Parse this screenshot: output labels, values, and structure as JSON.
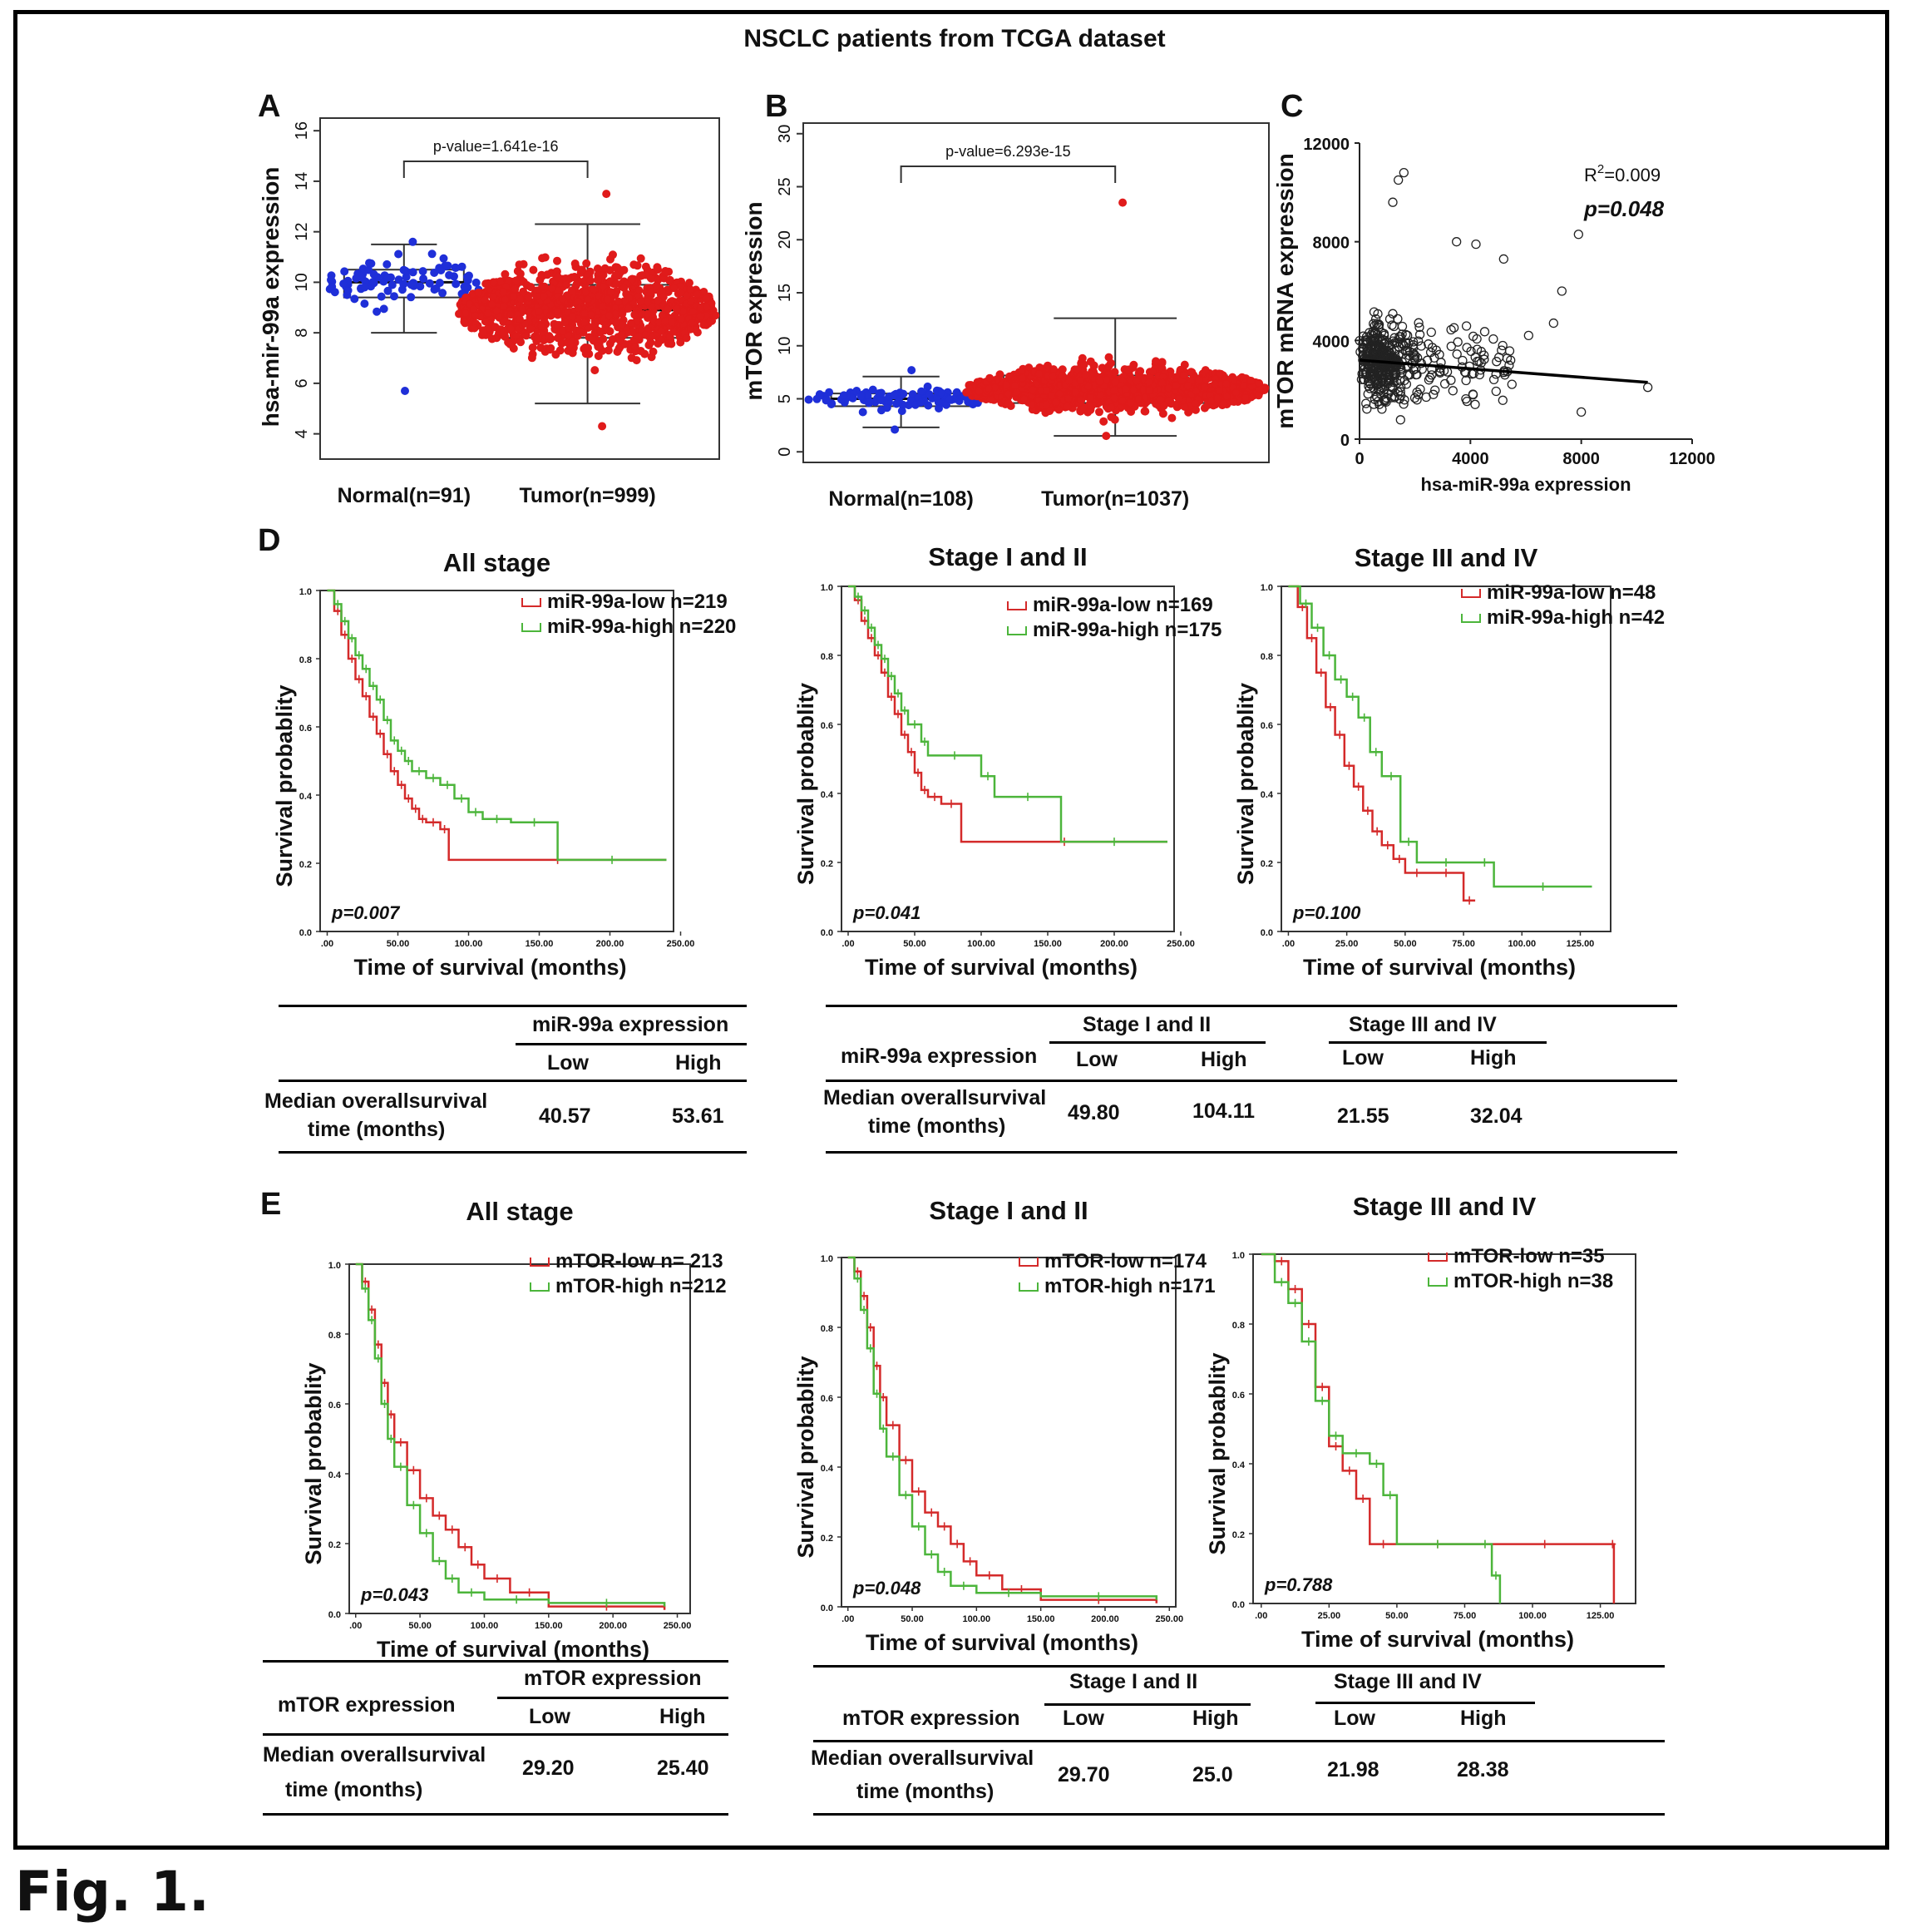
{
  "figure": {
    "title": "NSCLC patients from TCGA dataset",
    "caption": "Fig. 1.",
    "panel_labels": {
      "A": "A",
      "B": "B",
      "C": "C",
      "D": "D",
      "E": "E"
    }
  },
  "colors": {
    "normal": "#1f2fd8",
    "tumor": "#e01b1b",
    "low": "#d42a2a",
    "high": "#4cb53b"
  },
  "tables": {
    "d_all": {
      "group_header": "miR-99a expression",
      "low": "Low",
      "high": "High",
      "row_label_1": "Median overallsurvival",
      "row_label_2": "time (months)",
      "low_value": "40.57",
      "high_value": "53.61"
    },
    "d_stage": {
      "row_header": "miR-99a expression",
      "group1": "Stage I and II",
      "group2": "Stage III and IV",
      "low": "Low",
      "high": "High",
      "row_label_1": "Median overallsurvival",
      "row_label_2": "time (months)",
      "v1": "49.80",
      "v2": "104.11",
      "v3": "21.55",
      "v4": "32.04"
    },
    "e_all": {
      "group_header": "mTOR expression",
      "row_header": "mTOR expression",
      "low": "Low",
      "high": "High",
      "row_label_1": "Median overallsurvival",
      "row_label_2": "time (months)",
      "low_value": "29.20",
      "high_value": "25.40"
    },
    "e_stage": {
      "row_header": "mTOR expression",
      "group1": "Stage I and II",
      "group2": "Stage III and IV",
      "low": "Low",
      "high": "High",
      "row_label_1": "Median overallsurvival",
      "row_label_2": "time (months)",
      "v1": "29.70",
      "v2": "25.0",
      "v3": "21.98",
      "v4": "28.38"
    }
  },
  "chart_data": [
    {
      "id": "A",
      "type": "scatter",
      "subtype": "beeswarm-box",
      "ylabel": "hsa-mir-99a expression",
      "ylim": [
        3,
        16.5
      ],
      "yticks": [
        4,
        6,
        8,
        10,
        12,
        14,
        16
      ],
      "categories": [
        "Normal(n=91)",
        "Tumor(n=999)"
      ],
      "annotation": "p-value=1.641e-16",
      "series": [
        {
          "n": 91,
          "median": 10.0,
          "q1": 9.4,
          "q3": 10.5,
          "whisker_low": 8.0,
          "whisker_high": 11.5,
          "min": 5.7,
          "max": 11.6
        },
        {
          "n": 999,
          "median": 8.9,
          "q1": 7.8,
          "q3": 9.9,
          "whisker_low": 5.2,
          "whisker_high": 12.3,
          "min": 4.3,
          "max": 13.5
        }
      ]
    },
    {
      "id": "B",
      "type": "scatter",
      "subtype": "beeswarm-box",
      "ylabel": "mTOR  expression",
      "ylim": [
        -1,
        31
      ],
      "yticks": [
        0,
        5,
        10,
        15,
        20,
        25,
        30
      ],
      "categories": [
        "Normal(n=108)",
        "Tumor(n=1037)"
      ],
      "annotation": "p-value=6.293e-15",
      "series": [
        {
          "n": 108,
          "median": 5.0,
          "q1": 4.3,
          "q3": 5.5,
          "whisker_low": 2.3,
          "whisker_high": 7.1,
          "min": 2.1,
          "max": 7.7
        },
        {
          "n": 1037,
          "median": 5.9,
          "q1": 4.6,
          "q3": 7.2,
          "whisker_low": 1.5,
          "whisker_high": 12.6,
          "min": 1.5,
          "max": 23.5
        }
      ]
    },
    {
      "id": "C",
      "type": "scatter",
      "xlabel": "hsa-miR-99a expression",
      "ylabel": "mTOR  mRNA expression",
      "xlim": [
        0,
        12000
      ],
      "ylim": [
        0,
        12000
      ],
      "xticks": [
        0,
        4000,
        8000,
        12000
      ],
      "yticks": [
        0,
        4000,
        8000,
        12000
      ],
      "xtick_labels": [
        "0",
        "4000",
        "8000",
        "12000"
      ],
      "ytick_labels": [
        "0",
        "4000",
        "8000",
        "12000"
      ],
      "r2_label": "R",
      "r2_sup": "2",
      "r2_value": "=0.009",
      "p_label": "p=0.048",
      "fit_line": {
        "x": [
          0,
          10400
        ],
        "y": [
          3200,
          2300
        ]
      },
      "n_points": 440,
      "outlier_points": [
        {
          "x": 1400,
          "y": 10500
        },
        {
          "x": 1600,
          "y": 10800
        },
        {
          "x": 1200,
          "y": 9600
        },
        {
          "x": 7900,
          "y": 8300
        },
        {
          "x": 7300,
          "y": 6000
        },
        {
          "x": 7000,
          "y": 4700
        },
        {
          "x": 10400,
          "y": 2100
        },
        {
          "x": 8000,
          "y": 1100
        },
        {
          "x": 6100,
          "y": 4200
        },
        {
          "x": 5200,
          "y": 7300
        },
        {
          "x": 3500,
          "y": 8000
        },
        {
          "x": 4200,
          "y": 7900
        }
      ]
    },
    {
      "id": "D1",
      "type": "line",
      "subtype": "kaplan-meier",
      "title": "All stage",
      "xlabel": "Time of survival (months)",
      "ylabel": "Survival  probablity",
      "xlim": [
        -5,
        245
      ],
      "ylim": [
        0,
        1
      ],
      "xticks": [
        0,
        50,
        100,
        150,
        200,
        250
      ],
      "xtick_labels": [
        ".00",
        "50.00",
        "100.00",
        "150.00",
        "200.00",
        "250.00"
      ],
      "yticks": [
        0,
        0.2,
        0.4,
        0.6,
        0.8,
        1.0
      ],
      "ytick_labels": [
        "0.0",
        "0.2",
        "0.4",
        "0.6",
        "0.8",
        "1.0"
      ],
      "p_label": "p=0.007",
      "series": [
        {
          "name": "miR-99a-low n=219",
          "color": "#d42a2a",
          "x": [
            0,
            5,
            10,
            15,
            20,
            25,
            30,
            35,
            40,
            45,
            50,
            55,
            60,
            65,
            70,
            80,
            86,
            240
          ],
          "y": [
            1.0,
            0.94,
            0.87,
            0.8,
            0.74,
            0.69,
            0.63,
            0.58,
            0.52,
            0.47,
            0.43,
            0.39,
            0.36,
            0.33,
            0.32,
            0.3,
            0.21,
            0.21
          ]
        },
        {
          "name": "miR-99a-high n=220",
          "color": "#4cb53b",
          "x": [
            0,
            5,
            10,
            15,
            20,
            25,
            30,
            35,
            40,
            45,
            50,
            55,
            60,
            70,
            80,
            90,
            100,
            110,
            130,
            163,
            240
          ],
          "y": [
            1.0,
            0.96,
            0.91,
            0.86,
            0.81,
            0.77,
            0.72,
            0.68,
            0.62,
            0.56,
            0.53,
            0.5,
            0.47,
            0.45,
            0.43,
            0.39,
            0.35,
            0.33,
            0.32,
            0.21,
            0.21
          ]
        }
      ]
    },
    {
      "id": "D2",
      "type": "line",
      "subtype": "kaplan-meier",
      "title": "Stage I and II",
      "xlabel": "Time of survival (months)",
      "ylabel": "Survival  probablity",
      "xlim": [
        -5,
        245
      ],
      "ylim": [
        0,
        1
      ],
      "xticks": [
        0,
        50,
        100,
        150,
        200,
        250
      ],
      "xtick_labels": [
        ".00",
        "50.00",
        "100.00",
        "150.00",
        "200.00",
        "250.00"
      ],
      "yticks": [
        0,
        0.2,
        0.4,
        0.6,
        0.8,
        1.0
      ],
      "ytick_labels": [
        "0.0",
        "0.2",
        "0.4",
        "0.6",
        "0.8",
        "1.0"
      ],
      "p_label": "p=0.041",
      "series": [
        {
          "name": "miR-99a-low n=169",
          "color": "#d42a2a",
          "x": [
            0,
            5,
            10,
            15,
            20,
            25,
            30,
            35,
            40,
            45,
            50,
            55,
            60,
            70,
            85,
            240
          ],
          "y": [
            1.0,
            0.96,
            0.9,
            0.85,
            0.8,
            0.75,
            0.68,
            0.63,
            0.57,
            0.52,
            0.46,
            0.41,
            0.39,
            0.37,
            0.26,
            0.26
          ]
        },
        {
          "name": "miR-99a-high n=175",
          "color": "#4cb53b",
          "x": [
            0,
            5,
            10,
            15,
            20,
            25,
            30,
            35,
            40,
            45,
            55,
            60,
            100,
            110,
            160,
            240
          ],
          "y": [
            1.0,
            0.97,
            0.93,
            0.88,
            0.83,
            0.79,
            0.74,
            0.69,
            0.64,
            0.6,
            0.55,
            0.51,
            0.45,
            0.39,
            0.26,
            0.26
          ]
        }
      ]
    },
    {
      "id": "D3",
      "type": "line",
      "subtype": "kaplan-meier",
      "title": "Stage III and IV",
      "xlabel": "Time of survival (months)",
      "ylabel": "Survival  probablity",
      "xlim": [
        -3,
        138
      ],
      "ylim": [
        0,
        1
      ],
      "xticks": [
        0,
        25,
        50,
        75,
        100,
        125
      ],
      "xtick_labels": [
        ".00",
        "25.00",
        "50.00",
        "75.00",
        "100.00",
        "125.00"
      ],
      "yticks": [
        0,
        0.2,
        0.4,
        0.6,
        0.8,
        1.0
      ],
      "ytick_labels": [
        "0.0",
        "0.2",
        "0.4",
        "0.6",
        "0.8",
        "1.0"
      ],
      "p_label": "p=0.100",
      "series": [
        {
          "name": "miR-99a-low n=48",
          "color": "#d42a2a",
          "x": [
            0,
            4,
            8,
            12,
            16,
            20,
            24,
            28,
            32,
            36,
            40,
            45,
            50,
            60,
            75,
            80
          ],
          "y": [
            1.0,
            0.94,
            0.85,
            0.75,
            0.65,
            0.57,
            0.48,
            0.42,
            0.35,
            0.29,
            0.25,
            0.21,
            0.17,
            0.17,
            0.09,
            0.09
          ]
        },
        {
          "name": "miR-99a-high n=42",
          "color": "#4cb53b",
          "x": [
            0,
            5,
            10,
            15,
            20,
            25,
            30,
            35,
            40,
            48,
            55,
            80,
            88,
            130
          ],
          "y": [
            1.0,
            0.95,
            0.88,
            0.8,
            0.73,
            0.68,
            0.62,
            0.52,
            0.45,
            0.26,
            0.2,
            0.2,
            0.13,
            0.13
          ]
        }
      ]
    },
    {
      "id": "E1",
      "type": "line",
      "subtype": "kaplan-meier",
      "title": "All stage",
      "xlabel": "Time of survival (months)",
      "ylabel": "Survival  probablity",
      "xlim": [
        -5,
        260
      ],
      "ylim": [
        0,
        1
      ],
      "xticks": [
        0,
        50,
        100,
        150,
        200,
        250
      ],
      "xtick_labels": [
        ".00",
        "50.00",
        "100.00",
        "150.00",
        "200.00",
        "250.00"
      ],
      "yticks": [
        0,
        0.2,
        0.4,
        0.6,
        0.8,
        1.0
      ],
      "ytick_labels": [
        "0.0",
        "0.2",
        "0.4",
        "0.6",
        "0.8",
        "1.0"
      ],
      "p_label": "p=0.043",
      "series": [
        {
          "name": "mTOR-low n= 213",
          "color": "#d42a2a",
          "x": [
            0,
            5,
            10,
            15,
            20,
            25,
            30,
            40,
            50,
            60,
            70,
            80,
            90,
            100,
            120,
            150,
            240
          ],
          "y": [
            1.0,
            0.95,
            0.87,
            0.77,
            0.66,
            0.57,
            0.49,
            0.41,
            0.33,
            0.28,
            0.24,
            0.19,
            0.14,
            0.1,
            0.06,
            0.02,
            0.01
          ]
        },
        {
          "name": "mTOR-high n=212",
          "color": "#4cb53b",
          "x": [
            0,
            5,
            10,
            15,
            20,
            25,
            30,
            40,
            50,
            60,
            70,
            80,
            100,
            150,
            240
          ],
          "y": [
            1.0,
            0.93,
            0.84,
            0.73,
            0.6,
            0.5,
            0.42,
            0.31,
            0.23,
            0.15,
            0.1,
            0.06,
            0.04,
            0.03,
            0.02
          ]
        }
      ]
    },
    {
      "id": "E2",
      "type": "line",
      "subtype": "kaplan-meier",
      "title": "Stage I and II",
      "xlabel": "Time of survival (months)",
      "ylabel": "Survival  probablity",
      "xlim": [
        -5,
        255
      ],
      "ylim": [
        0,
        1
      ],
      "xticks": [
        0,
        50,
        100,
        150,
        200,
        250
      ],
      "xtick_labels": [
        ".00",
        "50.00",
        "100.00",
        "150.00",
        "200.00",
        "250.00"
      ],
      "yticks": [
        0,
        0.2,
        0.4,
        0.6,
        0.8,
        1.0
      ],
      "ytick_labels": [
        "0.0",
        "0.2",
        "0.4",
        "0.6",
        "0.8",
        "1.0"
      ],
      "p_label": "p=0.048",
      "series": [
        {
          "name": "mTOR-low n=174",
          "color": "#d42a2a",
          "x": [
            0,
            5,
            10,
            15,
            20,
            25,
            30,
            40,
            50,
            60,
            70,
            80,
            90,
            100,
            120,
            150,
            240
          ],
          "y": [
            1.0,
            0.96,
            0.89,
            0.8,
            0.69,
            0.6,
            0.52,
            0.42,
            0.33,
            0.27,
            0.23,
            0.18,
            0.13,
            0.09,
            0.05,
            0.02,
            0.01
          ]
        },
        {
          "name": "mTOR-high n=171",
          "color": "#4cb53b",
          "x": [
            0,
            5,
            10,
            15,
            20,
            25,
            30,
            40,
            50,
            60,
            70,
            80,
            100,
            150,
            240
          ],
          "y": [
            1.0,
            0.94,
            0.85,
            0.74,
            0.61,
            0.51,
            0.43,
            0.32,
            0.23,
            0.15,
            0.1,
            0.06,
            0.04,
            0.03,
            0.02
          ]
        }
      ]
    },
    {
      "id": "E3",
      "type": "line",
      "subtype": "kaplan-meier",
      "title": "Stage III and IV",
      "xlabel": "Time of survival (months)",
      "ylabel": "Survival  probablity",
      "xlim": [
        -3,
        138
      ],
      "ylim": [
        0,
        1
      ],
      "xticks": [
        0,
        25,
        50,
        75,
        100,
        125
      ],
      "xtick_labels": [
        ".00",
        "25.00",
        "50.00",
        "75.00",
        "100.00",
        "125.00"
      ],
      "yticks": [
        0,
        0.2,
        0.4,
        0.6,
        0.8,
        1.0
      ],
      "ytick_labels": [
        "0.0",
        "0.2",
        "0.4",
        "0.6",
        "0.8",
        "1.0"
      ],
      "p_label": "p=0.788",
      "series": [
        {
          "name": "mTOR-low n=35",
          "color": "#d42a2a",
          "x": [
            0,
            5,
            10,
            15,
            20,
            25,
            30,
            35,
            40,
            50,
            80,
            129,
            130
          ],
          "y": [
            1.0,
            0.98,
            0.9,
            0.8,
            0.62,
            0.45,
            0.38,
            0.3,
            0.17,
            0.17,
            0.17,
            0.17,
            0.0
          ]
        },
        {
          "name": "mTOR-high n=38",
          "color": "#4cb53b",
          "x": [
            0,
            5,
            10,
            15,
            20,
            25,
            30,
            40,
            45,
            50,
            80,
            85,
            88
          ],
          "y": [
            1.0,
            0.92,
            0.86,
            0.75,
            0.58,
            0.48,
            0.43,
            0.4,
            0.31,
            0.17,
            0.17,
            0.08,
            0.0
          ]
        }
      ]
    }
  ]
}
